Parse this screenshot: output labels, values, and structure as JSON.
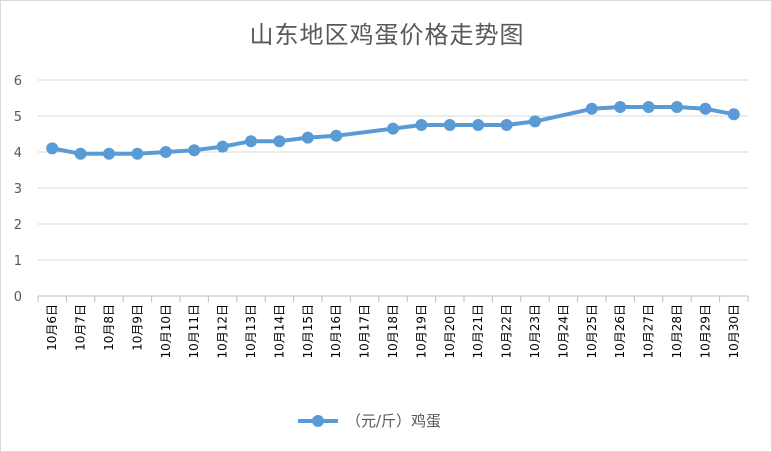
{
  "chart_data": {
    "type": "line",
    "title": "山东地区鸡蛋价格走势图",
    "categories": [
      "10月6日",
      "10月7日",
      "10月8日",
      "10月9日",
      "10月10日",
      "10月11日",
      "10月12日",
      "10月13日",
      "10月14日",
      "10月15日",
      "10月16日",
      "10月17日",
      "10月18日",
      "10月19日",
      "10月20日",
      "10月21日",
      "10月22日",
      "10月23日",
      "10月24日",
      "10月25日",
      "10月26日",
      "10月27日",
      "10月28日",
      "10月29日",
      "10月30日"
    ],
    "series": [
      {
        "name": "（元/斤）鸡蛋",
        "color": "#5b9bd5",
        "values": [
          4.1,
          3.95,
          3.95,
          3.95,
          4.0,
          4.05,
          4.15,
          4.3,
          4.3,
          4.4,
          4.45,
          null,
          4.65,
          4.75,
          4.75,
          4.75,
          4.75,
          4.85,
          null,
          5.2,
          5.25,
          5.25,
          5.25,
          5.2,
          5.05
        ]
      }
    ],
    "yticks": [
      0,
      1,
      2,
      3,
      4,
      5,
      6
    ],
    "ylim": [
      0,
      6
    ],
    "grid": true,
    "legend": "bottom"
  }
}
